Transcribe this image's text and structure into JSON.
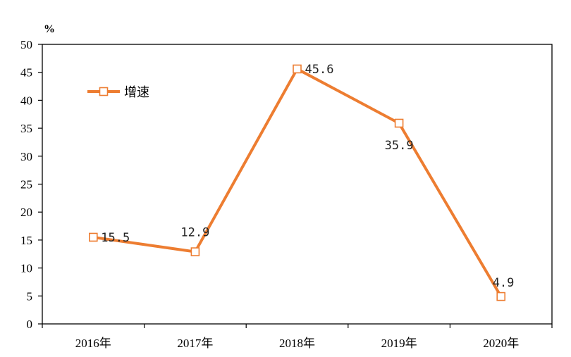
{
  "chart_data": {
    "type": "line",
    "categories": [
      "2016年",
      "2017年",
      "2018年",
      "2019年",
      "2020年"
    ],
    "series": [
      {
        "name": "增速",
        "values": [
          15.5,
          12.9,
          45.6,
          35.9,
          4.9
        ],
        "labels": [
          "15.5",
          "12.9",
          "45.6",
          "35.9",
          "4.9"
        ],
        "color": "#ED7D31"
      }
    ],
    "y_unit": "%",
    "ylim": [
      0,
      50
    ],
    "yticks": [
      "0",
      "5",
      "10",
      "15",
      "20",
      "25",
      "30",
      "35",
      "40",
      "45",
      "50"
    ],
    "grid": false,
    "legend_position": "top-left"
  }
}
